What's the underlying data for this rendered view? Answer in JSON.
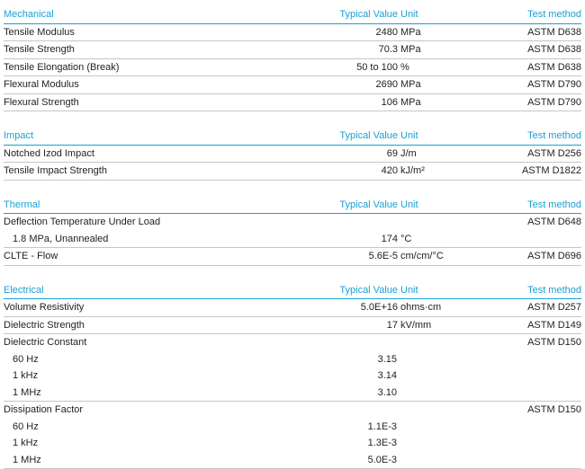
{
  "sections": [
    {
      "header": {
        "name": "Mechanical",
        "value": "Typical Value",
        "unit": "Unit",
        "method": "Test method"
      },
      "rows": [
        {
          "name": "Tensile Modulus",
          "value": "2480",
          "unit": "MPa",
          "method": "ASTM D638"
        },
        {
          "name": "Tensile Strength",
          "value": "70.3",
          "unit": "MPa",
          "method": "ASTM D638"
        },
        {
          "name": "Tensile Elongation (Break)",
          "value": "50 to 100",
          "unit": "%",
          "method": "ASTM D638"
        },
        {
          "name": "Flexural Modulus",
          "value": "2690",
          "unit": "MPa",
          "method": "ASTM D790"
        },
        {
          "name": "Flexural Strength",
          "value": "106",
          "unit": "MPa",
          "method": "ASTM D790"
        }
      ]
    },
    {
      "header": {
        "name": "Impact",
        "value": "Typical Value",
        "unit": "Unit",
        "method": "Test method"
      },
      "rows": [
        {
          "name": "Notched Izod Impact",
          "value": "69",
          "unit": "J/m",
          "method": "ASTM D256"
        },
        {
          "name": "Tensile Impact Strength",
          "value": "420",
          "unit": "kJ/m²",
          "method": "ASTM D1822"
        }
      ]
    },
    {
      "header": {
        "name": "Thermal",
        "value": "Typical Value",
        "unit": "Unit",
        "method": "Test method"
      },
      "rows": [
        {
          "name": "Deflection Temperature Under Load",
          "value": "",
          "unit": "",
          "method": "ASTM D648",
          "nob": true
        },
        {
          "name": "1.8 MPa, Unannealed",
          "value": "174",
          "unit": "°C",
          "method": "",
          "indent": true
        },
        {
          "name": "CLTE - Flow",
          "value": "5.6E-5",
          "unit": "cm/cm/°C",
          "method": "ASTM D696"
        }
      ]
    },
    {
      "header": {
        "name": "Electrical",
        "value": "Typical Value",
        "unit": "Unit",
        "method": "Test method"
      },
      "rows": [
        {
          "name": "Volume Resistivity",
          "value": "5.0E+16",
          "unit": "ohms·cm",
          "method": "ASTM D257"
        },
        {
          "name": "Dielectric Strength",
          "value": "17",
          "unit": "kV/mm",
          "method": "ASTM D149"
        },
        {
          "name": "Dielectric Constant",
          "value": "",
          "unit": "",
          "method": "ASTM D150",
          "nob": true
        },
        {
          "name": "60 Hz",
          "value": "3.15",
          "unit": "",
          "method": "",
          "indent": true,
          "nob": true
        },
        {
          "name": "1 kHz",
          "value": "3.14",
          "unit": "",
          "method": "",
          "indent": true,
          "nob": true
        },
        {
          "name": "1 MHz",
          "value": "3.10",
          "unit": "",
          "method": "",
          "indent": true
        },
        {
          "name": "Dissipation Factor",
          "value": "",
          "unit": "",
          "method": "ASTM D150",
          "nob": true
        },
        {
          "name": "60 Hz",
          "value": "1.1E-3",
          "unit": "",
          "method": "",
          "indent": true,
          "nob": true
        },
        {
          "name": "1 kHz",
          "value": "1.3E-3",
          "unit": "",
          "method": "",
          "indent": true,
          "nob": true
        },
        {
          "name": "1 MHz",
          "value": "5.0E-3",
          "unit": "",
          "method": "",
          "indent": true
        }
      ]
    }
  ]
}
